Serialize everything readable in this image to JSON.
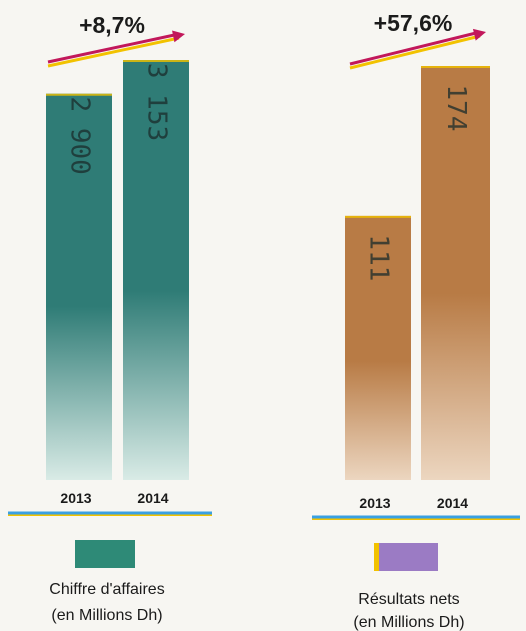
{
  "chart_data": [
    {
      "type": "bar",
      "categories": [
        "2013",
        "2014"
      ],
      "values": [
        2900,
        3153
      ],
      "value_labels": [
        "2 900",
        "3 153"
      ],
      "growth_label": "+8,7%",
      "legend": [
        "Chiffre d'affaires",
        "(en Millions Dh)"
      ],
      "colors": {
        "bar": "#2f7c76",
        "bar_light": "#d9ebe6",
        "swatch": "#2e8a77",
        "arrow": "#c2185b",
        "arrow_shadow": "#f2c200",
        "baseline": "#3aa0e3",
        "baseline_shadow": "#f3c300"
      }
    },
    {
      "type": "bar",
      "categories": [
        "2013",
        "2014"
      ],
      "values": [
        111,
        174
      ],
      "value_labels": [
        "111",
        "174"
      ],
      "growth_label": "+57,6%",
      "legend": [
        "Résultats nets",
        "(en Millions Dh)"
      ],
      "colors": {
        "bar": "#b87b45",
        "bar_light": "#ecd6c0",
        "swatch": "#9b7bc4",
        "swatch_edge": "#f2c200",
        "arrow": "#c2185b",
        "arrow_shadow": "#f2c200",
        "baseline": "#3aa0e3",
        "baseline_shadow": "#f3c300"
      }
    }
  ]
}
